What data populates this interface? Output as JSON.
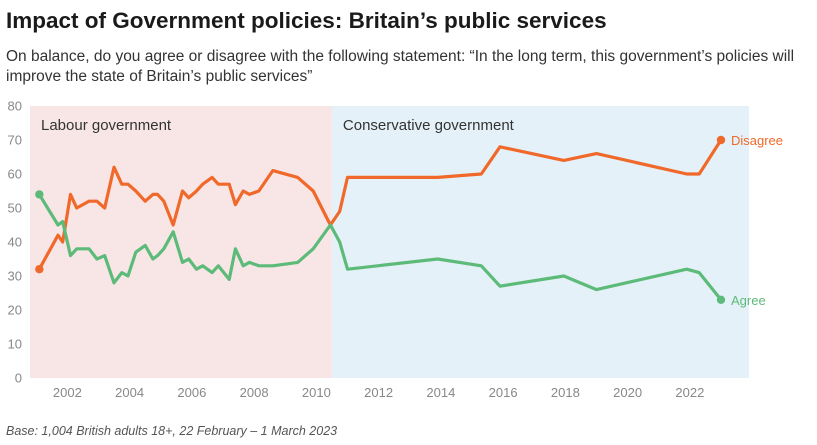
{
  "header": {
    "title": "Impact of Government policies: Britain’s public services",
    "subtitle": "On balance, do you agree or disagree with the following statement: “In the long term, this government’s policies will improve the state of Britain’s public services”"
  },
  "footer": {
    "note": "Base: 1,004 British adults 18+, 22 February – 1 March 2023"
  },
  "chart_data": {
    "type": "line",
    "title": "Impact of Government policies: Britain’s public services",
    "xlabel": "",
    "ylabel": "",
    "xlim": [
      2000.8,
      2023.9
    ],
    "ylim": [
      0,
      80
    ],
    "x_ticks": [
      2002,
      2004,
      2006,
      2008,
      2010,
      2012,
      2014,
      2016,
      2018,
      2020,
      2022
    ],
    "y_ticks": [
      0,
      10,
      20,
      30,
      40,
      50,
      60,
      70,
      80
    ],
    "grid": false,
    "legend": "direct labels at line ends",
    "regions": [
      {
        "label": "Labour government",
        "from": 2000.8,
        "to": 2010.5,
        "color": "#f8e6e6"
      },
      {
        "label": "Conservative government",
        "from": 2010.5,
        "to": 2023.9,
        "color": "#e5f1f8"
      }
    ],
    "series": [
      {
        "name": "Disagree",
        "color": "#f0692a",
        "points": [
          [
            2001.1,
            32
          ],
          [
            2001.7,
            42
          ],
          [
            2001.85,
            40
          ],
          [
            2002.1,
            54
          ],
          [
            2002.3,
            50
          ],
          [
            2002.7,
            52
          ],
          [
            2002.95,
            52
          ],
          [
            2003.2,
            50
          ],
          [
            2003.5,
            62
          ],
          [
            2003.75,
            57
          ],
          [
            2003.95,
            57
          ],
          [
            2004.2,
            55
          ],
          [
            2004.5,
            52
          ],
          [
            2004.75,
            54
          ],
          [
            2004.9,
            54
          ],
          [
            2005.1,
            52
          ],
          [
            2005.4,
            45
          ],
          [
            2005.7,
            55
          ],
          [
            2005.9,
            53
          ],
          [
            2006.15,
            55
          ],
          [
            2006.35,
            57
          ],
          [
            2006.65,
            59
          ],
          [
            2006.85,
            57
          ],
          [
            2007.2,
            57
          ],
          [
            2007.4,
            51
          ],
          [
            2007.65,
            55
          ],
          [
            2007.85,
            54
          ],
          [
            2008.15,
            55
          ],
          [
            2008.6,
            61
          ],
          [
            2009.4,
            59
          ],
          [
            2009.9,
            55
          ],
          [
            2010.45,
            45
          ],
          [
            2010.75,
            49
          ],
          [
            2011.0,
            59
          ],
          [
            2013.9,
            59
          ],
          [
            2015.3,
            60
          ],
          [
            2015.9,
            68
          ],
          [
            2017.95,
            64
          ],
          [
            2019.0,
            66
          ],
          [
            2021.9,
            60
          ],
          [
            2022.3,
            60
          ],
          [
            2023.0,
            70
          ]
        ]
      },
      {
        "name": "Agree",
        "color": "#5dbb7a",
        "points": [
          [
            2001.1,
            54
          ],
          [
            2001.7,
            45
          ],
          [
            2001.85,
            46
          ],
          [
            2002.1,
            36
          ],
          [
            2002.3,
            38
          ],
          [
            2002.7,
            38
          ],
          [
            2002.95,
            35
          ],
          [
            2003.2,
            36
          ],
          [
            2003.5,
            28
          ],
          [
            2003.75,
            31
          ],
          [
            2003.95,
            30
          ],
          [
            2004.2,
            37
          ],
          [
            2004.5,
            39
          ],
          [
            2004.75,
            35
          ],
          [
            2004.9,
            36
          ],
          [
            2005.1,
            38
          ],
          [
            2005.4,
            43
          ],
          [
            2005.7,
            34
          ],
          [
            2005.9,
            35
          ],
          [
            2006.15,
            32
          ],
          [
            2006.35,
            33
          ],
          [
            2006.65,
            31
          ],
          [
            2006.85,
            33
          ],
          [
            2007.2,
            29
          ],
          [
            2007.4,
            38
          ],
          [
            2007.65,
            33
          ],
          [
            2007.85,
            34
          ],
          [
            2008.15,
            33
          ],
          [
            2008.6,
            33
          ],
          [
            2009.4,
            34
          ],
          [
            2009.9,
            38
          ],
          [
            2010.45,
            45
          ],
          [
            2010.75,
            40
          ],
          [
            2011.0,
            32
          ],
          [
            2013.9,
            35
          ],
          [
            2015.3,
            33
          ],
          [
            2015.9,
            27
          ],
          [
            2017.95,
            30
          ],
          [
            2019.0,
            26
          ],
          [
            2021.9,
            32
          ],
          [
            2022.3,
            31
          ],
          [
            2023.0,
            23
          ]
        ]
      }
    ]
  }
}
